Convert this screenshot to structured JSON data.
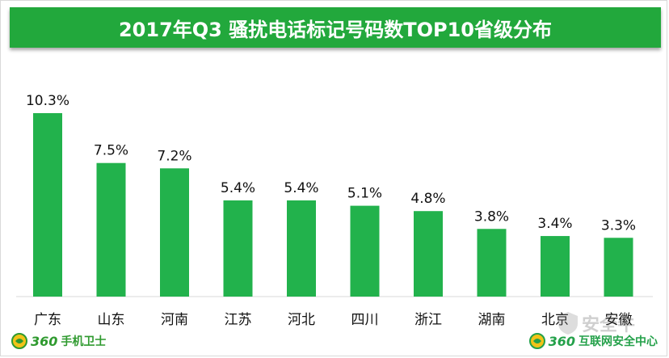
{
  "title": "2017年Q3  骚扰电话标记号码数TOP10省级分布",
  "chart_data": {
    "type": "bar",
    "categories": [
      "广东",
      "山东",
      "河南",
      "江苏",
      "河北",
      "四川",
      "浙江",
      "湖南",
      "北京",
      "安徽"
    ],
    "values": [
      10.3,
      7.5,
      7.2,
      5.4,
      5.4,
      5.1,
      4.8,
      3.8,
      3.4,
      3.3
    ],
    "value_labels": [
      "10.3%",
      "7.5%",
      "7.2%",
      "5.4%",
      "5.4%",
      "5.1%",
      "4.8%",
      "3.8%",
      "3.4%",
      "3.3%"
    ],
    "unit": "%",
    "bar_color": "#22b24c",
    "ylim": [
      0,
      10.3
    ],
    "grid": false,
    "legend": "none"
  },
  "logos": {
    "left": {
      "number": "360",
      "name": "手机卫士"
    },
    "right": {
      "number": "360",
      "name": "互联网安全中心"
    },
    "watermark": "安全牛"
  },
  "colors": {
    "title_bg": "#22a83c",
    "bar": "#22b24c",
    "logo_green": "#2f9a2f"
  }
}
